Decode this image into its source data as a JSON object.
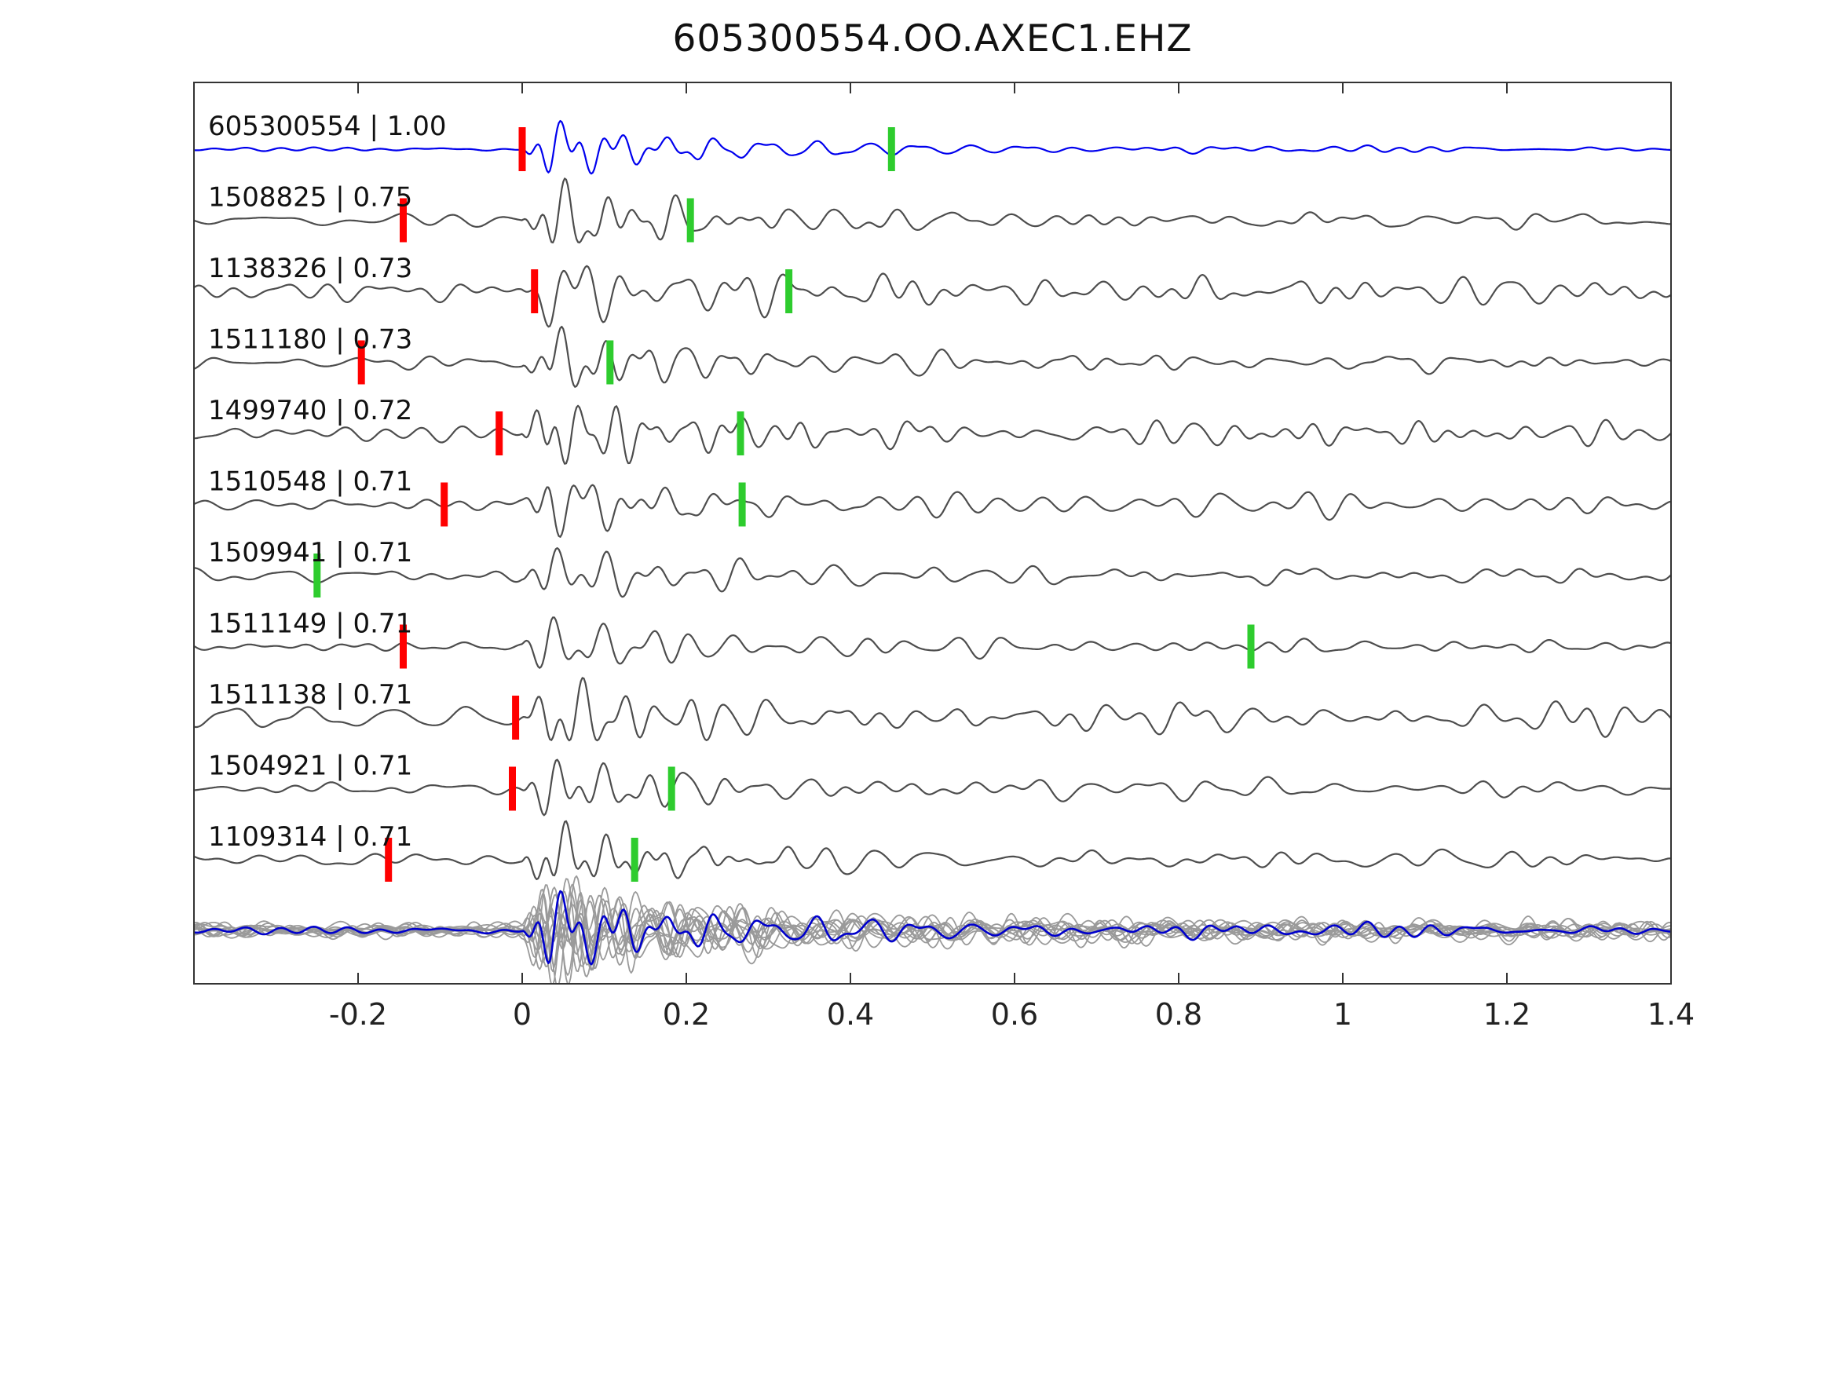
{
  "title": "605300554.OO.AXEC1.EHZ",
  "chart_data": {
    "type": "line",
    "description": "Stacked seismic waveform traces: template event vs matched detections with cross-correlation values, red (P) and green (S) pick markers, bottom row is overlay stack of all traces",
    "xlim": [
      -0.4,
      1.4
    ],
    "x_ticks": [
      "-0.2",
      "0",
      "0.2",
      "0.4",
      "0.6",
      "0.8",
      "1",
      "1.2",
      "1.4"
    ],
    "x_tick_values": [
      -0.2,
      0,
      0.2,
      0.4,
      0.6,
      0.8,
      1.0,
      1.2,
      1.4
    ],
    "grid": false,
    "legend": "none",
    "colors": {
      "template_trace": "#0000ee",
      "detection_trace": "#4d4d4d",
      "stack_member": "#9a9a9a",
      "stack_overlay": "#0000cc",
      "red_pick": "#ff0000",
      "green_pick": "#2ecc2e",
      "axis": "#333333",
      "label_text": "#111111"
    },
    "traces": [
      {
        "id": "605300554",
        "correlation": "1.00",
        "is_template": true,
        "red_pick": 0.0,
        "green_pick": 0.45
      },
      {
        "id": "1508825",
        "correlation": "0.75",
        "is_template": false,
        "red_pick": -0.145,
        "green_pick": 0.205
      },
      {
        "id": "1138326",
        "correlation": "0.73",
        "is_template": false,
        "red_pick": 0.015,
        "green_pick": 0.325
      },
      {
        "id": "1511180",
        "correlation": "0.73",
        "is_template": false,
        "red_pick": -0.196,
        "green_pick": 0.107
      },
      {
        "id": "1499740",
        "correlation": "0.72",
        "is_template": false,
        "red_pick": -0.028,
        "green_pick": 0.266
      },
      {
        "id": "1510548",
        "correlation": "0.71",
        "is_template": false,
        "red_pick": -0.095,
        "green_pick": 0.268
      },
      {
        "id": "1509941",
        "correlation": "0.71",
        "is_template": false,
        "red_pick": null,
        "green_pick": -0.25
      },
      {
        "id": "1511149",
        "correlation": "0.71",
        "is_template": false,
        "red_pick": -0.145,
        "green_pick": 0.888
      },
      {
        "id": "1511138",
        "correlation": "0.71",
        "is_template": false,
        "red_pick": -0.008,
        "green_pick": null
      },
      {
        "id": "1504921",
        "correlation": "0.71",
        "is_template": false,
        "red_pick": -0.012,
        "green_pick": 0.182
      },
      {
        "id": "1109314",
        "correlation": "0.71",
        "is_template": false,
        "red_pick": -0.163,
        "green_pick": 0.137
      }
    ],
    "stack": {
      "n_members": 12,
      "has_template_overlay": true,
      "red_pick": null,
      "green_pick": null
    }
  }
}
